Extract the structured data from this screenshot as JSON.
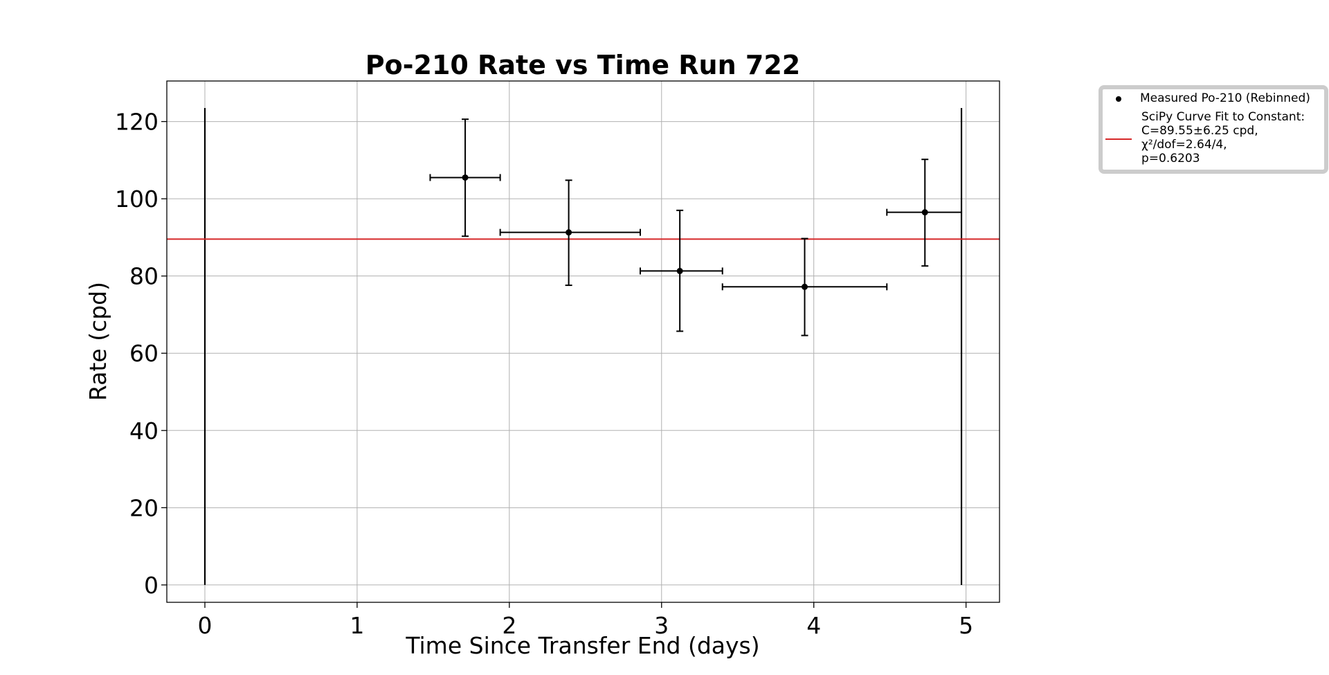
{
  "chart_data": {
    "type": "scatter",
    "title": "Po-210 Rate vs Time Run 722",
    "xlabel": "Time Since Transfer End (days)",
    "ylabel": "Rate (cpd)",
    "xlim": [
      -0.25,
      5.22
    ],
    "ylim": [
      -4.5,
      130.5
    ],
    "xticks": [
      "0",
      "1",
      "2",
      "3",
      "4",
      "5"
    ],
    "yticks": [
      "0",
      "20",
      "40",
      "60",
      "80",
      "100",
      "120"
    ],
    "grid": true,
    "legend_position": "outside-top-right",
    "series": [
      {
        "name": "Measured Po-210 (Rebinned)",
        "type": "errorbar",
        "color": "#000000",
        "points": [
          {
            "x": 1.71,
            "y": 105.5,
            "x_lo": 1.48,
            "x_hi": 1.94,
            "y_lo": 90.3,
            "y_hi": 120.6
          },
          {
            "x": 2.39,
            "y": 91.3,
            "x_lo": 1.94,
            "x_hi": 2.86,
            "y_lo": 77.6,
            "y_hi": 104.8
          },
          {
            "x": 3.12,
            "y": 81.3,
            "x_lo": 2.86,
            "x_hi": 3.4,
            "y_lo": 65.7,
            "y_hi": 97.0
          },
          {
            "x": 3.94,
            "y": 77.2,
            "x_lo": 3.4,
            "x_hi": 4.48,
            "y_lo": 64.6,
            "y_hi": 89.7
          },
          {
            "x": 4.73,
            "y": 96.5,
            "x_lo": 4.48,
            "x_hi": 4.97,
            "y_lo": 82.6,
            "y_hi": 110.2
          }
        ]
      },
      {
        "name": "SciPy Curve Fit to Constant:",
        "type": "line",
        "color": "#d62728",
        "y": 89.55,
        "x_range": [
          -0.25,
          5.22
        ]
      }
    ],
    "vertical_lines": [
      {
        "x": 0.0,
        "y_lo": 0,
        "y_hi": 123.5,
        "color": "#000000"
      },
      {
        "x": 4.97,
        "y_lo": 0,
        "y_hi": 123.5,
        "color": "#000000"
      }
    ],
    "legend": {
      "entries": [
        {
          "marker": "point",
          "lines": [
            "Measured Po-210 (Rebinned)"
          ]
        },
        {
          "marker": "line",
          "lines": [
            "SciPy Curve Fit to Constant:",
            "C=89.55±6.25 cpd,",
            "χ²/dof=2.64/4,",
            "p=0.6203"
          ]
        }
      ]
    }
  }
}
